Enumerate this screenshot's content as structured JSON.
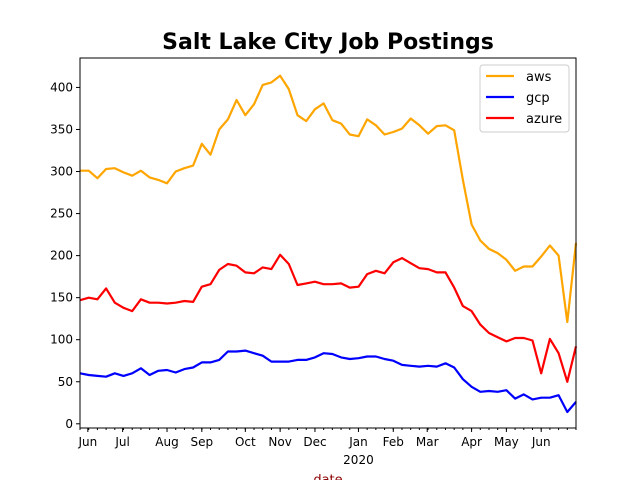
{
  "chart_data": {
    "type": "line",
    "title": "Salt Lake City Job Postings",
    "xlabel": "date",
    "ylabel": "",
    "x_unit": "week index (weekly samples)",
    "xlim": [
      0,
      57
    ],
    "ylim": [
      -5,
      435
    ],
    "yticks": [
      0,
      50,
      100,
      150,
      200,
      250,
      300,
      350,
      400
    ],
    "xticks": [
      {
        "label": "Jun",
        "x": 0.9
      },
      {
        "label": "Jul",
        "x": 4.9
      },
      {
        "label": "Aug",
        "x": 10
      },
      {
        "label": "Sep",
        "x": 14
      },
      {
        "label": "Oct",
        "x": 19
      },
      {
        "label": "Nov",
        "x": 23
      },
      {
        "label": "Dec",
        "x": 27
      },
      {
        "label": "Jan",
        "x": 32,
        "sub": "2020"
      },
      {
        "label": "Feb",
        "x": 36
      },
      {
        "label": "Mar",
        "x": 39.9
      },
      {
        "label": "Apr",
        "x": 45
      },
      {
        "label": "May",
        "x": 49
      },
      {
        "label": "Jun",
        "x": 53
      }
    ],
    "legend_position": "top-right",
    "grid": false,
    "series": [
      {
        "name": "aws",
        "color": "#ffa500",
        "values": [
          301,
          301,
          292,
          303,
          304,
          299,
          295,
          301,
          293,
          290,
          286,
          300,
          304,
          307,
          333,
          320,
          350,
          362,
          385,
          367,
          380,
          403,
          406,
          414,
          398,
          367,
          360,
          374,
          381,
          361,
          357,
          344,
          342,
          362,
          355,
          344,
          347,
          351,
          363,
          355,
          345,
          354,
          355,
          349,
          290,
          237,
          218,
          208,
          203,
          195,
          182,
          187,
          187,
          199,
          212,
          200,
          121,
          215
        ]
      },
      {
        "name": "gcp",
        "color": "#0000ff",
        "values": [
          60,
          58,
          57,
          56,
          60,
          57,
          60,
          66,
          58,
          63,
          64,
          61,
          65,
          67,
          73,
          73,
          76,
          86,
          86,
          87,
          84,
          81,
          74,
          74,
          74,
          76,
          76,
          79,
          84,
          83,
          79,
          77,
          78,
          80,
          80,
          77,
          75,
          70,
          69,
          68,
          69,
          68,
          72,
          67,
          53,
          44,
          38,
          39,
          38,
          40,
          30,
          35,
          29,
          31,
          31,
          34,
          14,
          26
        ]
      },
      {
        "name": "azure",
        "color": "#ff0000",
        "values": [
          147,
          150,
          148,
          161,
          144,
          138,
          134,
          148,
          144,
          144,
          143,
          144,
          146,
          145,
          163,
          166,
          183,
          190,
          188,
          180,
          179,
          186,
          184,
          201,
          190,
          165,
          167,
          169,
          166,
          166,
          167,
          162,
          163,
          178,
          182,
          179,
          192,
          197,
          191,
          185,
          184,
          180,
          180,
          162,
          140,
          134,
          118,
          108,
          103,
          98,
          102,
          102,
          99,
          60,
          101,
          84,
          50,
          92
        ]
      }
    ]
  }
}
